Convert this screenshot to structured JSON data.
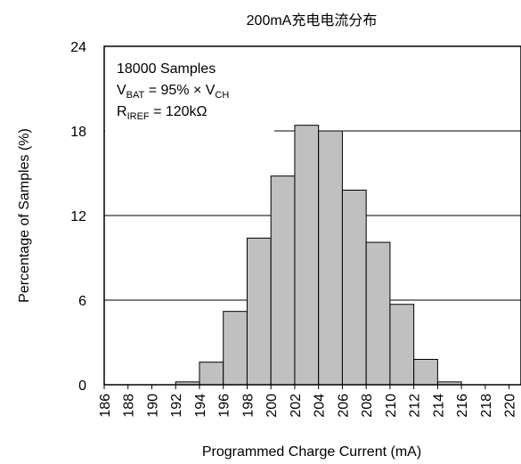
{
  "chart_data": {
    "type": "histogram",
    "title": "200mA充电电流分布",
    "xlabel": "Programmed Charge Current (mA)",
    "ylabel": "Percentage of Samples (%)",
    "bins": [
      186,
      188,
      190,
      192,
      194,
      196,
      198,
      200,
      202,
      204,
      206,
      208,
      210,
      212,
      214,
      216,
      218,
      220
    ],
    "values": [
      0,
      0,
      0,
      0.2,
      1.6,
      5.2,
      10.4,
      14.8,
      18.4,
      18.0,
      13.8,
      10.1,
      5.7,
      1.8,
      0.2,
      0,
      0
    ],
    "color": "#c0c0c0",
    "xlim": [
      186,
      221
    ],
    "xticks": [
      186,
      188,
      190,
      192,
      194,
      196,
      198,
      200,
      202,
      204,
      206,
      208,
      210,
      212,
      214,
      216,
      218,
      220
    ],
    "ylim": [
      0,
      24
    ],
    "yticks": [
      0,
      6,
      12,
      18,
      24
    ],
    "grid": true,
    "annotations": [
      [
        {
          "text": "18000 Samples"
        }
      ],
      [
        {
          "text": "V"
        },
        {
          "text": "BAT",
          "sub": true
        },
        {
          "text": " = 95% × V"
        },
        {
          "text": "CH",
          "sub": true
        }
      ],
      [
        {
          "text": "R"
        },
        {
          "text": "IREF",
          "sub": true
        },
        {
          "text": " = 120kΩ"
        }
      ]
    ]
  }
}
